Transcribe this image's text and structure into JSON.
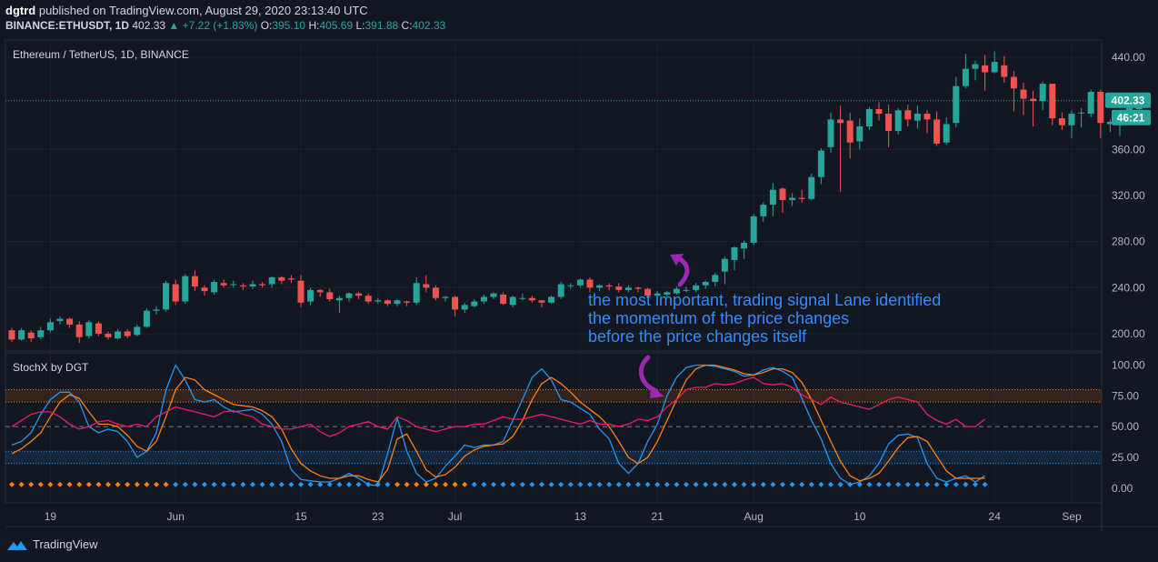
{
  "header": {
    "publisher": "dgtrd",
    "published_text": "published on TradingView.com, August 29, 2020 23:13:40 UTC",
    "symbol": "BINANCE:ETHUSDT, 1D",
    "last": "402.33",
    "change": "+7.22 (+1.83%)",
    "open_label": "O:",
    "open": "395.10",
    "high_label": "H:",
    "high": "405.69",
    "low_label": "L:",
    "low": "391.88",
    "close_label": "C:",
    "close": "402.33"
  },
  "brand": {
    "name": "TradingView"
  },
  "annotation": {
    "lines": [
      "the most important, trading signal Lane identified",
      "the momentum of the price changes",
      "before the price changes itself"
    ]
  },
  "colors": {
    "bg": "#131722",
    "up": "#26a69a",
    "down": "#ef5350",
    "grid": "#1e222d",
    "axis_text": "#b2b5be",
    "stoch_k": "#2196f3",
    "stoch_d": "#ff7f0e",
    "stoch_x": "#e91e63",
    "annotation": "#2f8cff",
    "arrow": "#9c27b0"
  },
  "chart_data": [
    {
      "type": "candlestick",
      "title": "Ethereum / TetherUS, 1D, BINANCE",
      "y_ticks": [
        200,
        240,
        280,
        320,
        360,
        440
      ],
      "ylim": [
        185,
        455
      ],
      "x_tick_labels": [
        "19",
        "Jun",
        "15",
        "23",
        "Jul",
        "13",
        "21",
        "Aug",
        "10",
        "24",
        "Sep"
      ],
      "x_tick_index": [
        4,
        17,
        30,
        38,
        46,
        59,
        67,
        77,
        88,
        102,
        110
      ],
      "last_price": "402.33",
      "countdown": "46:21",
      "candles": [
        [
          203,
          195,
          205,
          193
        ],
        [
          195,
          203,
          205,
          194
        ],
        [
          201,
          196,
          203,
          193
        ],
        [
          197,
          203,
          206,
          195
        ],
        [
          203,
          210,
          213,
          201
        ],
        [
          211,
          213,
          215,
          208
        ],
        [
          213,
          208,
          214,
          205
        ],
        [
          208,
          197,
          211,
          192
        ],
        [
          198,
          210,
          212,
          196
        ],
        [
          209,
          200,
          211,
          198
        ],
        [
          200,
          197,
          202,
          195
        ],
        [
          196,
          202,
          204,
          195
        ],
        [
          202,
          198,
          204,
          196
        ],
        [
          199,
          206,
          208,
          198
        ],
        [
          206,
          220,
          222,
          205
        ],
        [
          220,
          221,
          224,
          217
        ],
        [
          221,
          244,
          246,
          219
        ],
        [
          243,
          228,
          247,
          225
        ],
        [
          228,
          250,
          252,
          226
        ],
        [
          250,
          241,
          255,
          237
        ],
        [
          240,
          237,
          242,
          233
        ],
        [
          236,
          245,
          247,
          234
        ],
        [
          244,
          242,
          247,
          240
        ],
        [
          243,
          243,
          246,
          240
        ],
        [
          242,
          241,
          244,
          238
        ],
        [
          241,
          243,
          246,
          239
        ],
        [
          243,
          242,
          245,
          240
        ],
        [
          243,
          249,
          250,
          240
        ],
        [
          249,
          246,
          250,
          243
        ],
        [
          248,
          247,
          251,
          244
        ],
        [
          246,
          227,
          251,
          223
        ],
        [
          228,
          238,
          240,
          225
        ],
        [
          238,
          236,
          239,
          232
        ],
        [
          236,
          230,
          239,
          228
        ],
        [
          229,
          231,
          233,
          218
        ],
        [
          231,
          235,
          236,
          228
        ],
        [
          235,
          233,
          236,
          230
        ],
        [
          233,
          228,
          235,
          226
        ],
        [
          228,
          229,
          231,
          226
        ],
        [
          229,
          226,
          230,
          224
        ],
        [
          226,
          229,
          230,
          224
        ],
        [
          228,
          227,
          229,
          224
        ],
        [
          227,
          244,
          249,
          225
        ],
        [
          243,
          240,
          251,
          236
        ],
        [
          240,
          231,
          242,
          229
        ],
        [
          231,
          232,
          233,
          228
        ],
        [
          232,
          221,
          233,
          215
        ],
        [
          221,
          225,
          227,
          218
        ],
        [
          224,
          228,
          230,
          223
        ],
        [
          228,
          232,
          234,
          226
        ],
        [
          232,
          235,
          236,
          230
        ],
        [
          234,
          226,
          236,
          225
        ],
        [
          225,
          232,
          233,
          223
        ],
        [
          231,
          231,
          235,
          229
        ],
        [
          231,
          229,
          233,
          227
        ],
        [
          229,
          227,
          229,
          223
        ],
        [
          227,
          232,
          233,
          226
        ],
        [
          232,
          243,
          245,
          230
        ],
        [
          242,
          242,
          244,
          239
        ],
        [
          242,
          247,
          248,
          240
        ],
        [
          247,
          240,
          249,
          236
        ],
        [
          240,
          242,
          243,
          237
        ],
        [
          242,
          241,
          244,
          238
        ],
        [
          241,
          238,
          244,
          236
        ],
        [
          238,
          240,
          242,
          236
        ],
        [
          240,
          239,
          241,
          236
        ],
        [
          239,
          233,
          240,
          231
        ],
        [
          233,
          235,
          237,
          232
        ],
        [
          234,
          236,
          237,
          232
        ],
        [
          235,
          239,
          241,
          234
        ],
        [
          238,
          238,
          241,
          236
        ],
        [
          238,
          242,
          244,
          236
        ],
        [
          242,
          245,
          246,
          239
        ],
        [
          245,
          251,
          253,
          241
        ],
        [
          254,
          265,
          267,
          243
        ],
        [
          264,
          275,
          276,
          255
        ],
        [
          274,
          279,
          281,
          265
        ],
        [
          279,
          302,
          304,
          277
        ],
        [
          302,
          312,
          314,
          297
        ],
        [
          312,
          325,
          331,
          302
        ],
        [
          326,
          316,
          327,
          305
        ],
        [
          316,
          318,
          322,
          311
        ],
        [
          318,
          317,
          325,
          314
        ],
        [
          317,
          336,
          339,
          316
        ],
        [
          336,
          359,
          361,
          330
        ],
        [
          362,
          386,
          392,
          357
        ],
        [
          386,
          383,
          398,
          323
        ],
        [
          385,
          366,
          392,
          352
        ],
        [
          367,
          380,
          387,
          360
        ],
        [
          380,
          395,
          397,
          377
        ],
        [
          395,
          391,
          401,
          385
        ],
        [
          391,
          376,
          399,
          362
        ],
        [
          376,
          394,
          396,
          373
        ],
        [
          394,
          386,
          399,
          380
        ],
        [
          385,
          391,
          398,
          378
        ],
        [
          391,
          386,
          394,
          374
        ],
        [
          386,
          365,
          393,
          363
        ],
        [
          366,
          382,
          388,
          364
        ],
        [
          383,
          415,
          423,
          379
        ],
        [
          415,
          430,
          443,
          413
        ],
        [
          430,
          434,
          437,
          420
        ],
        [
          433,
          427,
          442,
          411
        ],
        [
          427,
          436,
          445,
          426
        ],
        [
          433,
          423,
          441,
          418
        ],
        [
          423,
          413,
          428,
          393
        ],
        [
          412,
          404,
          418,
          390
        ],
        [
          404,
          402,
          411,
          380
        ],
        [
          402,
          417,
          419,
          394
        ],
        [
          417,
          387,
          417,
          381
        ],
        [
          387,
          381,
          392,
          377
        ],
        [
          381,
          391,
          394,
          370
        ],
        [
          392,
          392,
          396,
          379
        ],
        [
          391,
          410,
          412,
          388
        ],
        [
          410,
          383,
          412,
          370
        ],
        [
          382,
          384,
          386,
          375
        ],
        [
          384,
          387,
          391,
          372
        ],
        [
          387,
          396,
          400,
          385
        ],
        [
          395,
          402,
          406,
          392
        ]
      ]
    },
    {
      "type": "line",
      "title": "StochX by DGT",
      "y_ticks": [
        0,
        25,
        50,
        75,
        100
      ],
      "ylim": [
        -12,
        110
      ],
      "bands": [
        [
          70,
          80
        ],
        [
          20,
          30
        ]
      ],
      "series": [
        {
          "values": [
            35,
            38,
            45,
            60,
            72,
            78,
            78,
            70,
            50,
            45,
            48,
            46,
            38,
            25,
            30,
            45,
            80,
            100,
            88,
            72,
            70,
            72,
            66,
            62,
            63,
            64,
            60,
            52,
            38,
            15,
            7,
            6,
            5,
            5,
            8,
            12,
            8,
            3,
            2,
            28,
            57,
            30,
            12,
            5,
            8,
            18,
            26,
            35,
            33,
            35,
            35,
            38,
            55,
            72,
            90,
            97,
            88,
            72,
            70,
            65,
            60,
            48,
            40,
            20,
            12,
            20,
            38,
            52,
            75,
            90,
            98,
            100,
            100,
            99,
            97,
            95,
            91,
            92,
            96,
            98,
            95,
            90,
            73,
            55,
            40,
            20,
            8,
            3,
            5,
            10,
            20,
            36,
            43,
            44,
            41,
            20,
            8,
            5,
            8,
            10,
            5,
            10
          ]
        },
        {
          "values": [
            28,
            32,
            38,
            45,
            58,
            70,
            76,
            73,
            62,
            52,
            52,
            50,
            43,
            34,
            30,
            38,
            58,
            80,
            90,
            88,
            80,
            76,
            72,
            68,
            67,
            66,
            63,
            58,
            48,
            32,
            20,
            14,
            10,
            8,
            8,
            10,
            10,
            7,
            5,
            15,
            40,
            44,
            30,
            15,
            9,
            11,
            17,
            26,
            31,
            34,
            35,
            36,
            42,
            55,
            72,
            85,
            90,
            85,
            78,
            70,
            64,
            58,
            50,
            38,
            25,
            20,
            25,
            38,
            55,
            72,
            88,
            97,
            100,
            100,
            98,
            96,
            93,
            92,
            94,
            97,
            97,
            94,
            86,
            72,
            55,
            38,
            22,
            10,
            6,
            8,
            12,
            22,
            33,
            41,
            42,
            38,
            26,
            14,
            8,
            8,
            8,
            8
          ]
        },
        {
          "values": [
            50,
            55,
            60,
            62,
            62,
            58,
            52,
            48,
            50,
            54,
            55,
            52,
            50,
            52,
            50,
            58,
            62,
            66,
            64,
            62,
            60,
            58,
            62,
            63,
            60,
            58,
            52,
            50,
            48,
            48,
            50,
            52,
            46,
            42,
            45,
            50,
            52,
            54,
            50,
            48,
            58,
            55,
            50,
            48,
            46,
            48,
            50,
            50,
            52,
            52,
            55,
            58,
            56,
            56,
            58,
            60,
            58,
            56,
            54,
            52,
            55,
            52,
            52,
            50,
            52,
            56,
            55,
            58,
            66,
            72,
            80,
            82,
            82,
            85,
            84,
            85,
            88,
            90,
            85,
            84,
            85,
            82,
            76,
            72,
            68,
            74,
            70,
            68,
            66,
            64,
            68,
            72,
            74,
            72,
            70,
            60,
            55,
            52,
            56,
            50,
            50,
            56
          ]
        }
      ],
      "x_tick_labels": [
        "19",
        "Jun",
        "15",
        "23",
        "Jul",
        "13",
        "21",
        "Aug",
        "10",
        "24",
        "Sep"
      ],
      "x_tick_index": [
        4,
        17,
        30,
        38,
        46,
        59,
        67,
        77,
        88,
        102,
        110
      ]
    }
  ]
}
